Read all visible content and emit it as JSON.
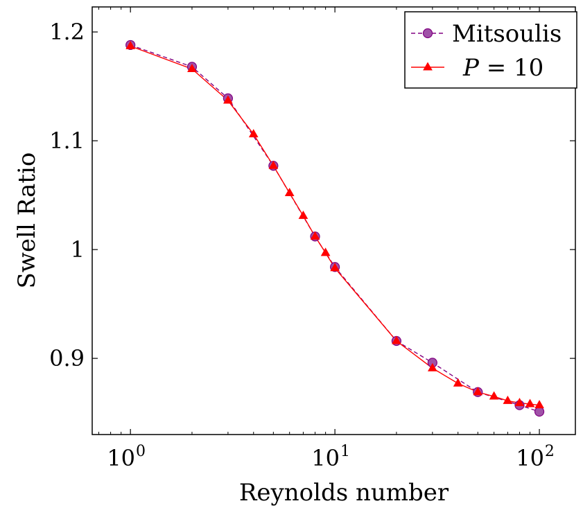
{
  "chart_data": {
    "type": "line",
    "title": "",
    "xlabel": "Reynolds number",
    "ylabel": "Swell Ratio",
    "x_scale": "log",
    "xlim": [
      0.65,
      150
    ],
    "ylim": [
      0.83,
      1.223
    ],
    "x_ticks": [
      {
        "value": 1,
        "base": "10",
        "exp": "0"
      },
      {
        "value": 10,
        "base": "10",
        "exp": "1"
      },
      {
        "value": 100,
        "base": "10",
        "exp": "2"
      }
    ],
    "y_ticks": [
      {
        "value": 0.9,
        "label": "0.9"
      },
      {
        "value": 1.0,
        "label": "1"
      },
      {
        "value": 1.1,
        "label": "1.1"
      },
      {
        "value": 1.2,
        "label": "1.2"
      }
    ],
    "grid": false,
    "legend_position": "top-right",
    "series": [
      {
        "name": "Mitsoulis",
        "style": "dashed",
        "marker": "circle",
        "line_color": "#800080",
        "marker_fill": "#a052a8",
        "x": [
          1,
          2,
          3,
          5,
          8,
          10,
          20,
          30,
          50,
          80,
          100
        ],
        "y": [
          1.188,
          1.168,
          1.139,
          1.077,
          1.012,
          0.984,
          0.916,
          0.896,
          0.869,
          0.857,
          0.851
        ]
      },
      {
        "name_var": "P",
        "name_rest": " = 10",
        "style": "solid",
        "marker": "triangle",
        "line_color": "#ff0000",
        "marker_fill": "#ff0000",
        "x": [
          1,
          2,
          3,
          4,
          5,
          6,
          7,
          8,
          9,
          10,
          20,
          30,
          40,
          50,
          60,
          70,
          80,
          90,
          100
        ],
        "y": [
          1.187,
          1.166,
          1.137,
          1.106,
          1.077,
          1.052,
          1.031,
          1.012,
          0.997,
          0.983,
          0.916,
          0.891,
          0.877,
          0.869,
          0.865,
          0.861,
          0.859,
          0.858,
          0.857
        ]
      }
    ]
  }
}
